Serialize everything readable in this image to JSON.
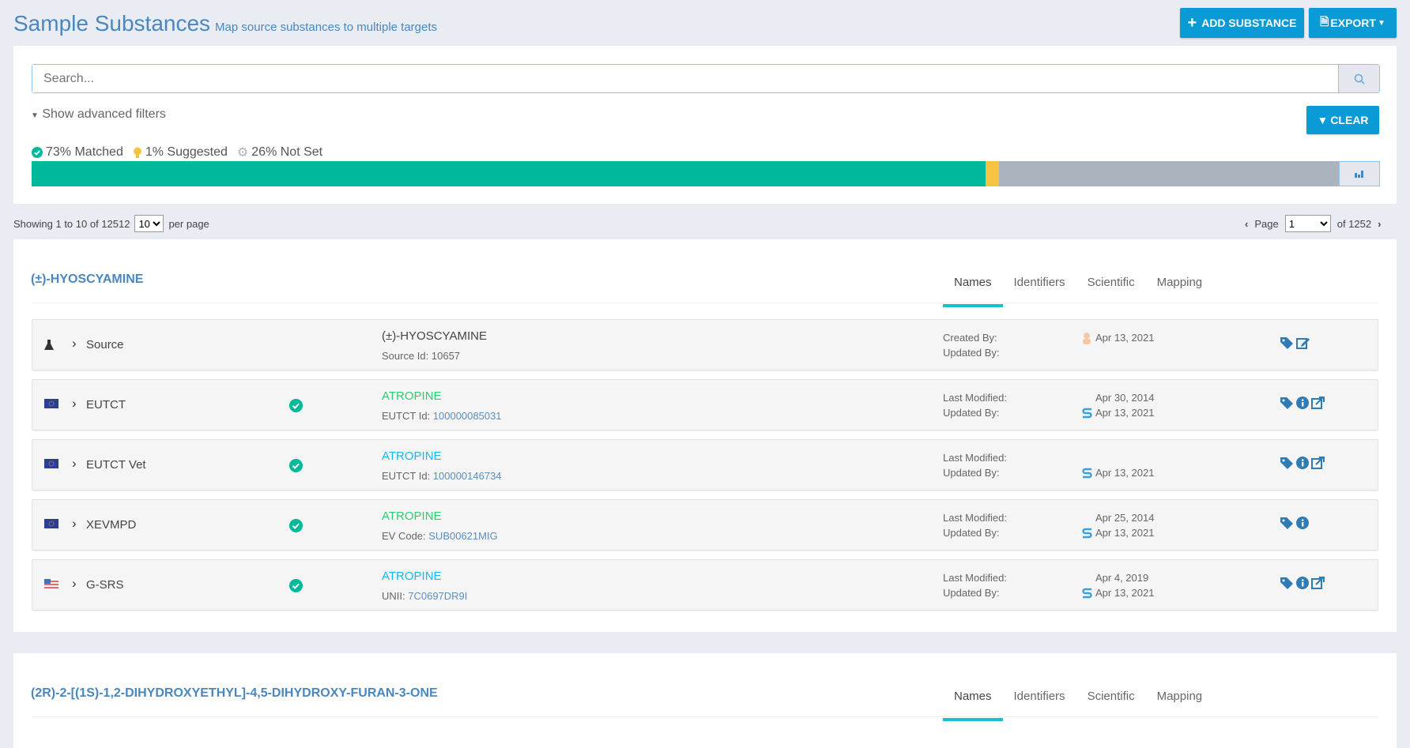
{
  "header": {
    "title": "Sample Substances",
    "subtitle": "Map source substances to multiple targets",
    "add_label": "ADD SUBSTANCE",
    "export_label": "EXPORT"
  },
  "search": {
    "placeholder": "Search...",
    "value": ""
  },
  "filters": {
    "toggle_label": "Show advanced filters",
    "clear_label": "CLEAR"
  },
  "stats": {
    "matched_label": "73% Matched",
    "suggested_label": "1% Suggested",
    "notset_label": "26% Not Set",
    "matched": 73,
    "suggested": 1,
    "not_set": 26,
    "colors": {
      "matched": "#00b99a",
      "suggested": "#f5c242",
      "not_set": "#aab4bf"
    }
  },
  "pagination": {
    "showing": "Showing 1 to 10 of 12512",
    "per_page_value": "10",
    "per_page_label": "per page",
    "page_label": "Page",
    "page_value": "1",
    "of_label": "of 1252"
  },
  "tabs": [
    "Names",
    "Identifiers",
    "Scientific",
    "Mapping"
  ],
  "cards": [
    {
      "title": "(±)-HYOSCYAMINE",
      "rows": [
        {
          "icon": "flask-icon",
          "source": "Source",
          "matched": false,
          "name": "(±)-HYOSCYAMINE",
          "name_color": "#444444",
          "id_label": "Source Id: ",
          "id_value": "10657",
          "label1": "Created By:",
          "label2": "Updated By:",
          "date1": "Apr 13, 2021",
          "date2": "",
          "user1": "user-avatar-icon",
          "user2": "",
          "actions": [
            "tag-icon",
            "edit-icon"
          ]
        },
        {
          "icon": "eu-flag-icon",
          "source": "EUTCT",
          "matched": true,
          "name": "ATROPINE",
          "name_color": "#2ecc71",
          "id_label": "EUTCT Id: ",
          "id_value": "100000085031",
          "label1": "Last Modified:",
          "label2": "Updated By:",
          "date1": "Apr 30, 2014",
          "date2": "Apr 13, 2021",
          "user2": "s-logo-icon",
          "actions": [
            "tag-icon",
            "info-icon",
            "external-link-icon"
          ]
        },
        {
          "icon": "eu-flag-icon",
          "source": "EUTCT Vet",
          "matched": true,
          "name": "ATROPINE",
          "name_color": "#1ab8e8",
          "id_label": "EUTCT Id: ",
          "id_value": "100000146734",
          "label1": "Last Modified:",
          "label2": "Updated By:",
          "date1": "",
          "date2": "Apr 13, 2021",
          "user2": "s-logo-icon",
          "actions": [
            "tag-icon",
            "info-icon",
            "external-link-icon"
          ]
        },
        {
          "icon": "eu-flag-icon",
          "source": "XEVMPD",
          "matched": true,
          "name": "ATROPINE",
          "name_color": "#2ecc71",
          "id_label": "EV Code: ",
          "id_value": "SUB00621MIG",
          "label1": "Last Modified:",
          "label2": "Updated By:",
          "date1": "Apr 25, 2014",
          "date2": "Apr 13, 2021",
          "user2": "s-logo-icon",
          "actions": [
            "tag-icon",
            "info-icon"
          ]
        },
        {
          "icon": "us-flag-icon",
          "source": "G-SRS",
          "matched": true,
          "name": "ATROPINE",
          "name_color": "#1ab8e8",
          "id_label": "UNII: ",
          "id_value": "7C0697DR9I",
          "label1": "Last Modified:",
          "label2": "Updated By:",
          "date1": "Apr 4, 2019",
          "date2": "Apr 13, 2021",
          "user2": "s-logo-icon",
          "actions": [
            "tag-icon",
            "info-icon",
            "external-link-icon"
          ]
        }
      ]
    },
    {
      "title": "(2R)-2-[(1S)-1,2-DIHYDROXYETHYL]-4,5-DIHYDROXY-FURAN-3-ONE",
      "rows": []
    }
  ]
}
